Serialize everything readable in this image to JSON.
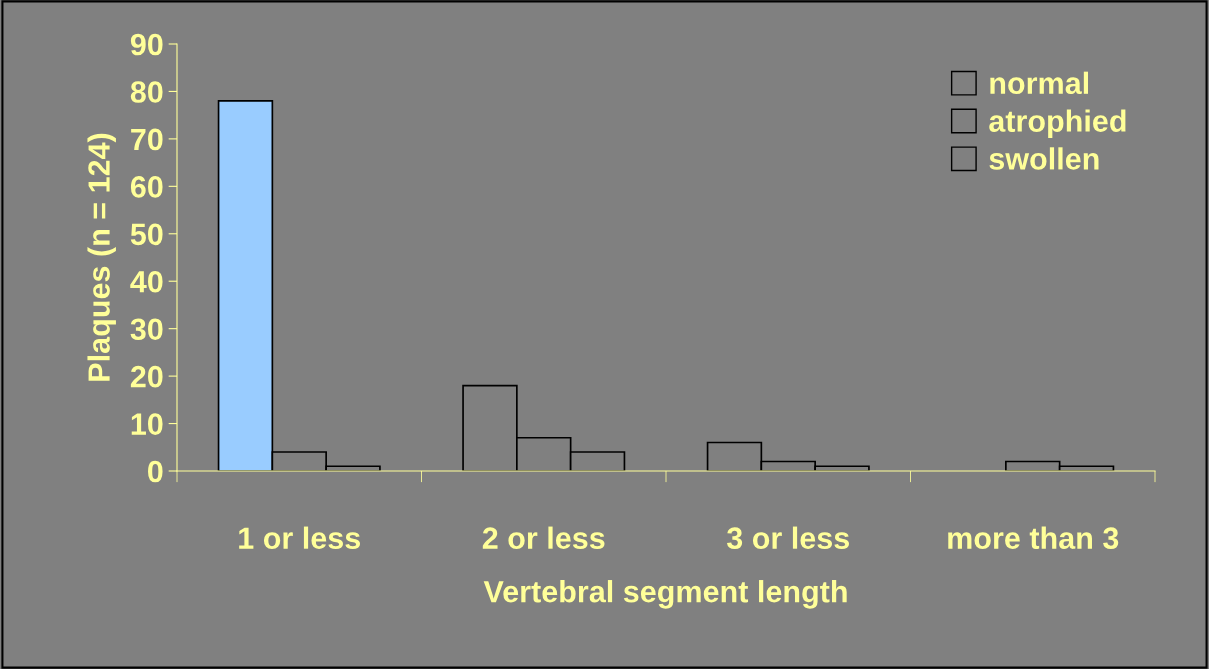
{
  "chart_data": {
    "type": "bar",
    "xlabel": "Vertebral segment length",
    "ylabel": "Plaques (n = 124)",
    "categories": [
      "1 or less",
      "2 or less",
      "3 or less",
      "more than 3"
    ],
    "series": [
      {
        "name": "normal",
        "color": "#808080",
        "colors": [
          "#99ccff",
          "#808080",
          "#808080",
          "#808080"
        ],
        "values": [
          78,
          18,
          6,
          null
        ]
      },
      {
        "name": "atrophied",
        "color": "#808080",
        "values": [
          4,
          7,
          2,
          2
        ]
      },
      {
        "name": "swollen",
        "color": "#808080",
        "values": [
          1,
          4,
          1,
          1
        ]
      }
    ],
    "ylim": [
      0,
      90
    ],
    "yticks": [
      0,
      10,
      20,
      30,
      40,
      50,
      60,
      70,
      80,
      90
    ],
    "grid": false,
    "legend": "top right"
  }
}
